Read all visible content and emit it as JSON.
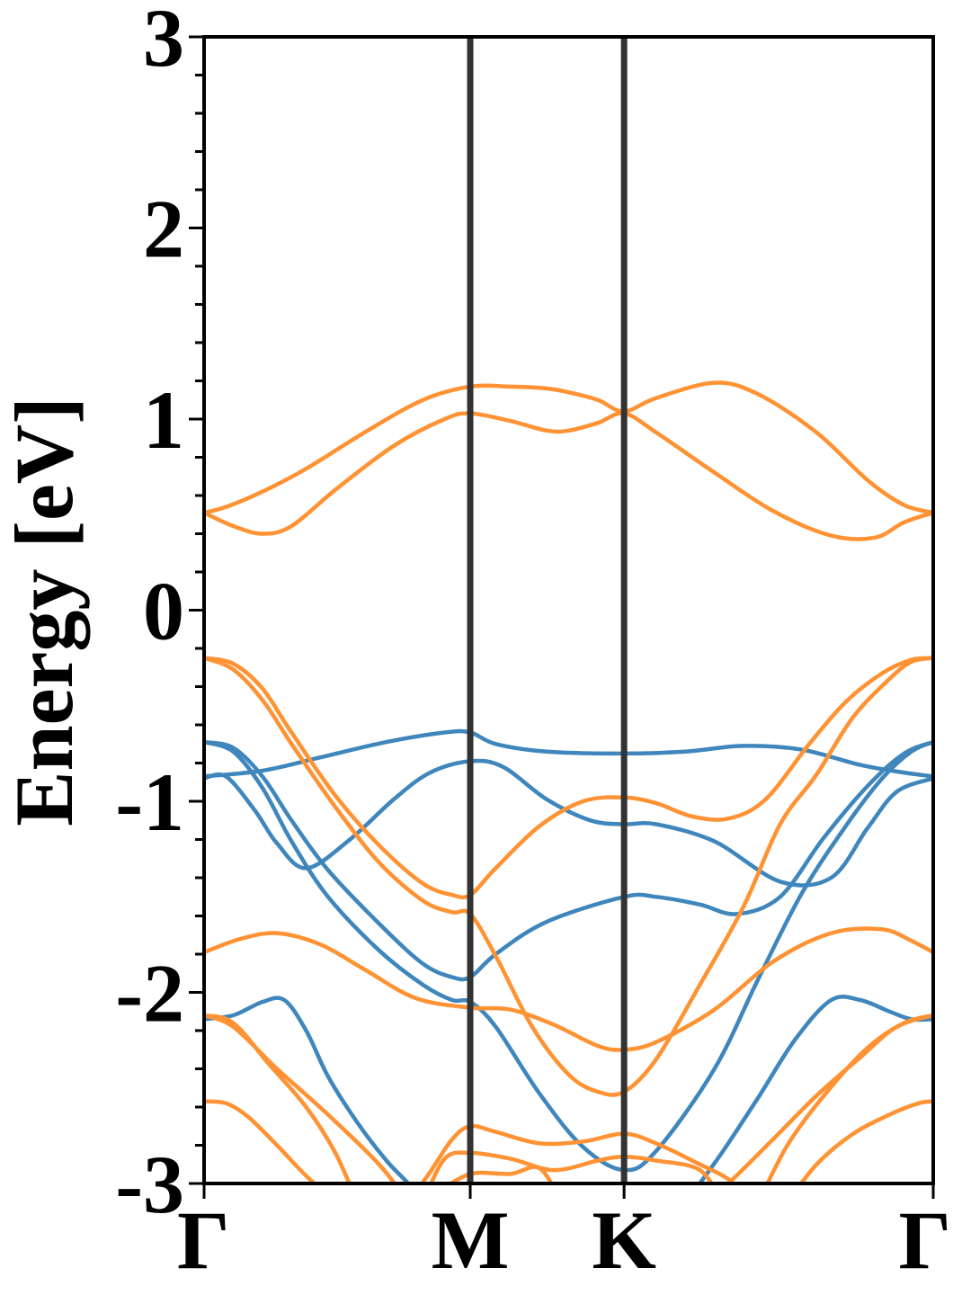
{
  "chart_data": {
    "type": "line",
    "title": "",
    "xlabel": "",
    "ylabel": "Energy [eV]",
    "ylim": [
      -3,
      3
    ],
    "y_ticks": [
      "3",
      "2",
      "1",
      "0",
      "-1",
      "-2",
      "-3"
    ],
    "y_tick_values": [
      3,
      2,
      1,
      0,
      -1,
      -2,
      -3
    ],
    "y_minor_step": 0.2,
    "x_ticks": [
      "Γ",
      "M",
      "K",
      "Γ"
    ],
    "x_tick_positions": [
      0,
      0.365,
      0.576,
      1
    ],
    "xlim": [
      0,
      1
    ],
    "grid": false,
    "colors": {
      "blue": "#3f86bc",
      "orange": "#ff9233",
      "kpath_line": "#333333"
    },
    "series": [
      {
        "color": "orange",
        "x": [
          0,
          0.03,
          0.08,
          0.14,
          0.22,
          0.3,
          0.365,
          0.42,
          0.47,
          0.5,
          0.54,
          0.576,
          0.62,
          0.7,
          0.76,
          0.84,
          0.91,
          0.96,
          1
        ],
        "y": [
          0.51,
          0.54,
          0.62,
          0.74,
          0.93,
          1.1,
          1.17,
          1.17,
          1.16,
          1.14,
          1.1,
          1.04,
          1.11,
          1.19,
          1.13,
          0.93,
          0.68,
          0.55,
          0.51
        ]
      },
      {
        "color": "orange",
        "x": [
          0,
          0.04,
          0.08,
          0.12,
          0.18,
          0.26,
          0.33,
          0.365,
          0.42,
          0.47,
          0.5,
          0.54,
          0.576,
          0.62,
          0.7,
          0.78,
          0.86,
          0.92,
          0.96,
          1
        ],
        "y": [
          0.51,
          0.44,
          0.4,
          0.44,
          0.63,
          0.86,
          1.0,
          1.03,
          0.99,
          0.94,
          0.94,
          0.98,
          1.03,
          0.93,
          0.72,
          0.52,
          0.39,
          0.38,
          0.46,
          0.51
        ]
      },
      {
        "color": "blue",
        "x": [
          0,
          0.08,
          0.16,
          0.25,
          0.33,
          0.365,
          0.4,
          0.47,
          0.576,
          0.66,
          0.74,
          0.82,
          0.9,
          0.96,
          1
        ],
        "y": [
          -0.87,
          -0.84,
          -0.77,
          -0.69,
          -0.64,
          -0.64,
          -0.7,
          -0.74,
          -0.75,
          -0.74,
          -0.71,
          -0.73,
          -0.81,
          -0.85,
          -0.87
        ]
      },
      {
        "color": "blue",
        "x": [
          0,
          0.03,
          0.07,
          0.1,
          0.14,
          0.2,
          0.26,
          0.31,
          0.365,
          0.41,
          0.47,
          0.53,
          0.576,
          0.62,
          0.7,
          0.79,
          0.86,
          0.91,
          0.95,
          1
        ],
        "y": [
          -0.88,
          -0.87,
          -1.05,
          -1.22,
          -1.35,
          -1.2,
          -0.99,
          -0.85,
          -0.79,
          -0.82,
          -0.99,
          -1.1,
          -1.12,
          -1.12,
          -1.21,
          -1.42,
          -1.4,
          -1.14,
          -0.95,
          -0.88
        ]
      },
      {
        "color": "blue",
        "x": [
          0,
          0.04,
          0.08,
          0.12,
          0.17,
          0.24,
          0.3,
          0.34,
          0.365,
          0.4,
          0.47,
          0.576,
          0.62,
          0.68,
          0.73,
          0.79,
          0.85,
          0.91,
          0.96,
          1
        ],
        "y": [
          -0.69,
          -0.72,
          -0.87,
          -1.1,
          -1.36,
          -1.64,
          -1.85,
          -1.92,
          -1.92,
          -1.8,
          -1.63,
          -1.5,
          -1.5,
          -1.54,
          -1.59,
          -1.5,
          -1.19,
          -0.92,
          -0.75,
          -0.69
        ]
      },
      {
        "color": "blue",
        "x": [
          0,
          0.04,
          0.08,
          0.12,
          0.17,
          0.24,
          0.3,
          0.34,
          0.365,
          0.4,
          0.46,
          0.52,
          0.576,
          0.62,
          0.7,
          0.76,
          0.82,
          0.88,
          0.93,
          0.97,
          1
        ],
        "y": [
          -0.69,
          -0.74,
          -0.93,
          -1.21,
          -1.5,
          -1.78,
          -1.96,
          -2.04,
          -2.05,
          -2.18,
          -2.53,
          -2.81,
          -2.93,
          -2.83,
          -2.4,
          -1.93,
          -1.48,
          -1.13,
          -0.88,
          -0.74,
          -0.69
        ]
      },
      {
        "color": "orange",
        "x": [
          0,
          0.04,
          0.08,
          0.12,
          0.18,
          0.24,
          0.3,
          0.34,
          0.365,
          0.4,
          0.46,
          0.52,
          0.576,
          0.62,
          0.67,
          0.72,
          0.77,
          0.83,
          0.88,
          0.93,
          0.97,
          1
        ],
        "y": [
          -0.25,
          -0.28,
          -0.41,
          -0.64,
          -0.97,
          -1.23,
          -1.43,
          -1.49,
          -1.49,
          -1.35,
          -1.13,
          -1.0,
          -0.98,
          -1.01,
          -1.08,
          -1.09,
          -0.99,
          -0.7,
          -0.48,
          -0.33,
          -0.26,
          -0.25
        ]
      },
      {
        "color": "orange",
        "x": [
          0,
          0.04,
          0.08,
          0.12,
          0.18,
          0.24,
          0.3,
          0.34,
          0.365,
          0.4,
          0.45,
          0.5,
          0.54,
          0.576,
          0.62,
          0.68,
          0.74,
          0.79,
          0.84,
          0.89,
          0.94,
          0.97,
          1
        ],
        "y": [
          -0.25,
          -0.31,
          -0.47,
          -0.7,
          -1.03,
          -1.32,
          -1.52,
          -1.58,
          -1.59,
          -1.81,
          -2.18,
          -2.43,
          -2.52,
          -2.52,
          -2.35,
          -1.96,
          -1.55,
          -1.12,
          -0.86,
          -0.56,
          -0.36,
          -0.27,
          -0.25
        ]
      },
      {
        "color": "orange",
        "x": [
          0,
          0.05,
          0.1,
          0.16,
          0.22,
          0.29,
          0.365,
          0.42,
          0.48,
          0.54,
          0.576,
          0.62,
          0.7,
          0.78,
          0.86,
          0.93,
          0.97,
          1
        ],
        "y": [
          -1.79,
          -1.72,
          -1.69,
          -1.75,
          -1.88,
          -2.03,
          -2.08,
          -2.09,
          -2.17,
          -2.28,
          -2.3,
          -2.26,
          -2.09,
          -1.84,
          -1.69,
          -1.67,
          -1.73,
          -1.79
        ]
      },
      {
        "color": "blue",
        "x": [
          0,
          0.04,
          0.08,
          0.11,
          0.14,
          0.17,
          0.21,
          0.25,
          0.28,
          0.3
        ],
        "y": [
          -2.14,
          -2.12,
          -2.05,
          -2.04,
          -2.2,
          -2.44,
          -2.68,
          -2.88,
          -3.0,
          -3.1
        ]
      },
      {
        "color": "blue",
        "x": [
          0.67,
          0.71,
          0.76,
          0.81,
          0.86,
          0.9,
          0.94,
          0.97,
          1
        ],
        "y": [
          -3.05,
          -2.84,
          -2.55,
          -2.25,
          -2.04,
          -2.04,
          -2.1,
          -2.14,
          -2.14
        ]
      },
      {
        "color": "orange",
        "x": [
          0,
          0.04,
          0.09,
          0.14,
          0.18,
          0.21
        ],
        "y": [
          -2.12,
          -2.16,
          -2.38,
          -2.6,
          -2.84,
          -3.1
        ]
      },
      {
        "color": "orange",
        "x": [
          0.76,
          0.8,
          0.85,
          0.91,
          0.96,
          1
        ],
        "y": [
          -3.1,
          -2.8,
          -2.54,
          -2.29,
          -2.16,
          -2.12
        ]
      },
      {
        "color": "orange",
        "x": [
          0,
          0.04,
          0.1,
          0.17,
          0.24,
          0.28
        ],
        "y": [
          -2.12,
          -2.18,
          -2.4,
          -2.64,
          -2.9,
          -3.1
        ]
      },
      {
        "color": "orange",
        "x": [
          0.69,
          0.73,
          0.78,
          0.84,
          0.9,
          0.95,
          1
        ],
        "y": [
          -3.1,
          -2.96,
          -2.77,
          -2.54,
          -2.34,
          -2.18,
          -2.12
        ]
      },
      {
        "color": "orange",
        "x": [
          0,
          0.03,
          0.06,
          0.1,
          0.14,
          0.18
        ],
        "y": [
          -2.57,
          -2.58,
          -2.65,
          -2.8,
          -2.96,
          -3.1
        ]
      },
      {
        "color": "orange",
        "x": [
          0.8,
          0.84,
          0.89,
          0.94,
          0.98,
          1
        ],
        "y": [
          -3.1,
          -2.9,
          -2.74,
          -2.64,
          -2.58,
          -2.57
        ]
      },
      {
        "color": "orange",
        "x": [
          0.28,
          0.31,
          0.34,
          0.365,
          0.4,
          0.46,
          0.52,
          0.576,
          0.62,
          0.68,
          0.72,
          0.75
        ],
        "y": [
          -3.1,
          -2.94,
          -2.77,
          -2.7,
          -2.73,
          -2.79,
          -2.78,
          -2.74,
          -2.79,
          -2.9,
          -2.98,
          -3.1
        ]
      },
      {
        "color": "orange",
        "x": [
          0.3,
          0.33,
          0.365,
          0.42,
          0.48,
          0.54,
          0.576,
          0.62,
          0.68,
          0.71
        ],
        "y": [
          -3.1,
          -2.87,
          -2.84,
          -2.87,
          -2.93,
          -2.88,
          -2.86,
          -2.88,
          -2.93,
          -3.1
        ]
      },
      {
        "color": "orange",
        "x": [
          0.32,
          0.365,
          0.42,
          0.46,
          0.49
        ],
        "y": [
          -3.05,
          -2.95,
          -2.95,
          -2.92,
          -3.1
        ]
      }
    ]
  }
}
